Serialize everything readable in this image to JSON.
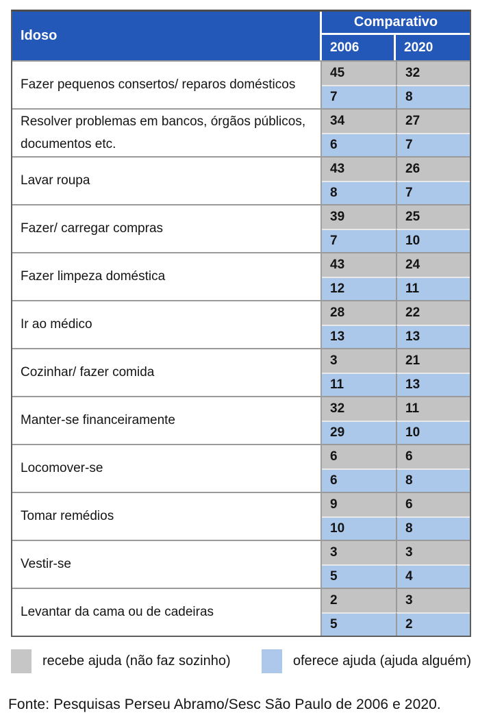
{
  "colors": {
    "header_blue": "#2357b8",
    "recebe_gray": "#c3c3c3",
    "oferece_blue": "#abc7ea",
    "border_gray": "#9a9a9a"
  },
  "table": {
    "header": {
      "left_title": "Idoso",
      "group_title": "Comparativo",
      "year_cols": [
        "2006",
        "2020"
      ]
    },
    "rows": [
      {
        "label": "Fazer pequenos consertos/ reparos domésticos",
        "recebe": [
          "45",
          "32"
        ],
        "oferece": [
          "7",
          "8"
        ]
      },
      {
        "label": "Resolver problemas em bancos, órgãos públicos, documentos etc.",
        "recebe": [
          "34",
          "27"
        ],
        "oferece": [
          "6",
          "7"
        ]
      },
      {
        "label": "Lavar roupa",
        "recebe": [
          "43",
          "26"
        ],
        "oferece": [
          "8",
          "7"
        ]
      },
      {
        "label": "Fazer/ carregar compras",
        "recebe": [
          "39",
          "25"
        ],
        "oferece": [
          "7",
          "10"
        ]
      },
      {
        "label": "Fazer limpeza doméstica",
        "recebe": [
          "43",
          "24"
        ],
        "oferece": [
          "12",
          "11"
        ]
      },
      {
        "label": "Ir ao médico",
        "recebe": [
          "28",
          "22"
        ],
        "oferece": [
          "13",
          "13"
        ]
      },
      {
        "label": "Cozinhar/ fazer comida",
        "recebe": [
          "3",
          "21"
        ],
        "oferece": [
          "11",
          "13"
        ]
      },
      {
        "label": "Manter-se financeiramente",
        "recebe": [
          "32",
          "11"
        ],
        "oferece": [
          "29",
          "10"
        ]
      },
      {
        "label": "Locomover-se",
        "recebe": [
          "6",
          "6"
        ],
        "oferece": [
          "6",
          "8"
        ]
      },
      {
        "label": "Tomar remédios",
        "recebe": [
          "9",
          "6"
        ],
        "oferece": [
          "10",
          "8"
        ]
      },
      {
        "label": "Vestir-se",
        "recebe": [
          "3",
          "3"
        ],
        "oferece": [
          "5",
          "4"
        ]
      },
      {
        "label": "Levantar da cama ou de cadeiras",
        "recebe": [
          "2",
          "3"
        ],
        "oferece": [
          "5",
          "2"
        ]
      }
    ]
  },
  "legend": {
    "recebe": "recebe ajuda (não faz sozinho)",
    "oferece": "oferece ajuda (ajuda alguém)"
  },
  "fonte": "Fonte: Pesquisas Perseu Abramo/Sesc São Paulo de 2006 e 2020.",
  "chart_data": {
    "type": "table",
    "title": "Idoso — Comparativo 2006 x 2020",
    "categories": [
      "Fazer pequenos consertos/ reparos domésticos",
      "Resolver problemas em bancos, órgãos públicos, documentos etc.",
      "Lavar roupa",
      "Fazer/ carregar compras",
      "Fazer limpeza doméstica",
      "Ir ao médico",
      "Cozinhar/ fazer comida",
      "Manter-se financeiramente",
      "Locomover-se",
      "Tomar remédios",
      "Vestir-se",
      "Levantar da cama ou de cadeiras"
    ],
    "series": [
      {
        "name": "recebe ajuda (não faz sozinho) — 2006",
        "values": [
          45,
          34,
          43,
          39,
          43,
          28,
          3,
          32,
          6,
          9,
          3,
          2
        ]
      },
      {
        "name": "recebe ajuda (não faz sozinho) — 2020",
        "values": [
          32,
          27,
          26,
          25,
          24,
          22,
          21,
          11,
          6,
          6,
          3,
          3
        ]
      },
      {
        "name": "oferece ajuda (ajuda alguém) — 2006",
        "values": [
          7,
          6,
          8,
          7,
          12,
          13,
          11,
          29,
          6,
          10,
          5,
          5
        ]
      },
      {
        "name": "oferece ajuda (ajuda alguém) — 2020",
        "values": [
          8,
          7,
          7,
          10,
          11,
          13,
          13,
          10,
          8,
          8,
          4,
          2
        ]
      }
    ],
    "legend_position": "bottom",
    "source": "Fonte: Pesquisas Perseu Abramo/Sesc São Paulo de 2006 e 2020."
  }
}
